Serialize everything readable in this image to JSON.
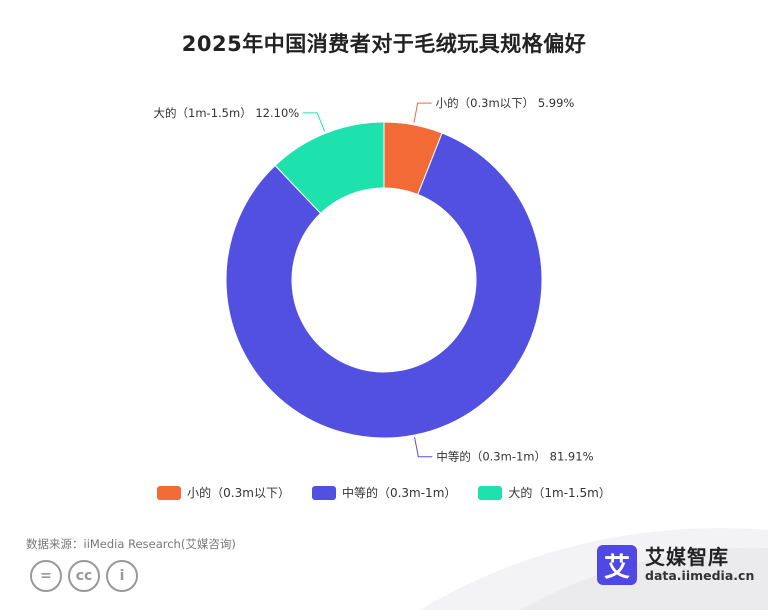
{
  "chart_data": {
    "type": "pie",
    "title": "2025年中国消费者对于毛绒玩具规格偏好",
    "unit": "%",
    "donut": true,
    "legend_position": "bottom",
    "slices": [
      {
        "name": "小的（0.3m以下）",
        "value": 5.99,
        "label": "5.99%",
        "color": "#f26a35"
      },
      {
        "name": "中等的（0.3m-1m）",
        "value": 81.91,
        "label": "81.91%",
        "color": "#5150e0"
      },
      {
        "name": "大的（1m-1.5m）",
        "value": 12.1,
        "label": "12.10%",
        "color": "#1de2ae"
      }
    ]
  },
  "footer": {
    "source": "数据来源：iiMedia Research(艾媒咨询)",
    "brand_mark": "艾",
    "brand_name": "艾媒智库",
    "brand_url": "data.iimedia.cn",
    "license_icons": [
      "=",
      "cc",
      "i"
    ]
  }
}
